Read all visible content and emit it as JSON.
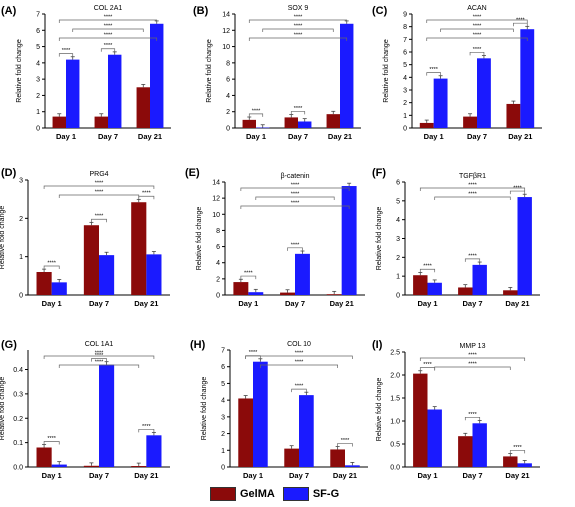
{
  "colors": {
    "GelMA": "#8b0a0a",
    "SF-G": "#1a1aff",
    "bracket": "#666666"
  },
  "legend": [
    {
      "name": "GelMA",
      "color": "#8b0a0a"
    },
    {
      "name": "SF-G",
      "color": "#1a1aff"
    }
  ],
  "ylabel_common": "Relative fold change",
  "chart_data": [
    {
      "type": "bar",
      "letter": "(A)",
      "title": "COL 2A1",
      "categories": [
        "Day 1",
        "Day 7",
        "Day 21"
      ],
      "ylim": [
        0,
        7
      ],
      "yticks": [
        0,
        1,
        2,
        3,
        4,
        5,
        6,
        7
      ],
      "series": [
        {
          "name": "GelMA",
          "values": [
            0.7,
            0.7,
            2.5
          ]
        },
        {
          "name": "SF-G",
          "values": [
            4.2,
            4.5,
            6.4
          ]
        }
      ],
      "significance": [
        "****",
        "****",
        "****",
        "****",
        "****"
      ]
    },
    {
      "type": "bar",
      "letter": "(B)",
      "title": "SOX 9",
      "categories": [
        "Day 1",
        "Day 7",
        "Day 21"
      ],
      "ylim": [
        0,
        14
      ],
      "yticks": [
        0,
        2,
        4,
        6,
        8,
        10,
        12,
        14
      ],
      "series": [
        {
          "name": "GelMA",
          "values": [
            1.0,
            1.3,
            1.7
          ]
        },
        {
          "name": "SF-G",
          "values": [
            0.05,
            0.8,
            12.8
          ]
        }
      ],
      "significance": [
        "****",
        "****",
        "****",
        "****",
        "****",
        "****"
      ]
    },
    {
      "type": "bar",
      "letter": "(C)",
      "title": "ACAN",
      "categories": [
        "Day 1",
        "Day 7",
        "Day 21"
      ],
      "ylim": [
        0,
        9
      ],
      "yticks": [
        0,
        1,
        2,
        3,
        4,
        5,
        6,
        7,
        8,
        9
      ],
      "series": [
        {
          "name": "GelMA",
          "values": [
            0.4,
            0.9,
            1.9
          ]
        },
        {
          "name": "SF-G",
          "values": [
            3.9,
            5.5,
            7.8
          ]
        }
      ],
      "significance": [
        "****",
        "****",
        "****",
        "****",
        "****",
        "****",
        "****"
      ]
    },
    {
      "type": "bar",
      "letter": "(D)",
      "title": "PRG4",
      "categories": [
        "Day 1",
        "Day 7",
        "Day 21"
      ],
      "ylim": [
        0,
        3
      ],
      "yticks": [
        0,
        1,
        2,
        3
      ],
      "series": [
        {
          "name": "GelMA",
          "values": [
            0.6,
            1.82,
            2.42
          ]
        },
        {
          "name": "SF-G",
          "values": [
            0.33,
            1.04,
            1.06
          ]
        }
      ],
      "significance": [
        "****",
        "****",
        "****",
        "****",
        "****"
      ]
    },
    {
      "type": "bar",
      "letter": "(E)",
      "title": "β-catenin",
      "categories": [
        "Day 1",
        "Day 7",
        "Day 21"
      ],
      "ylim": [
        0,
        14
      ],
      "yticks": [
        0,
        2,
        4,
        6,
        8,
        10,
        12,
        14
      ],
      "series": [
        {
          "name": "GelMA",
          "values": [
            1.6,
            0.3,
            0.1
          ]
        },
        {
          "name": "SF-G",
          "values": [
            0.35,
            5.1,
            13.5
          ]
        }
      ],
      "significance": [
        "****",
        "****",
        "****",
        "****",
        "****"
      ]
    },
    {
      "type": "bar",
      "letter": "(F)",
      "title": "TGFβR1",
      "categories": [
        "Day 1",
        "Day 7",
        "Day 21"
      ],
      "ylim": [
        0,
        6
      ],
      "yticks": [
        0,
        1,
        2,
        3,
        4,
        5,
        6
      ],
      "series": [
        {
          "name": "GelMA",
          "values": [
            1.05,
            0.4,
            0.25
          ]
        },
        {
          "name": "SF-G",
          "values": [
            0.65,
            1.6,
            5.2
          ]
        }
      ],
      "significance": [
        "****",
        "****",
        "****",
        "****",
        "****"
      ]
    },
    {
      "type": "bar",
      "letter": "(G)",
      "title": "COL 1A1",
      "categories": [
        "Day 1",
        "Day 7",
        "Day 21"
      ],
      "ylim": [
        0,
        0.48
      ],
      "yticks": [
        0.0,
        0.1,
        0.2,
        0.3,
        0.4
      ],
      "series": [
        {
          "name": "GelMA",
          "values": [
            0.08,
            0.005,
            0.004
          ]
        },
        {
          "name": "SF-G",
          "values": [
            0.01,
            0.42,
            0.13
          ]
        }
      ],
      "significance": [
        "****",
        "****",
        "****",
        "****",
        "****"
      ]
    },
    {
      "type": "bar",
      "letter": "(H)",
      "title": "COL 10",
      "categories": [
        "Day 1",
        "Day 7",
        "Day 21"
      ],
      "ylim": [
        0,
        7
      ],
      "yticks": [
        0,
        1,
        2,
        3,
        4,
        5,
        6,
        7
      ],
      "series": [
        {
          "name": "GelMA",
          "values": [
            4.1,
            1.1,
            1.05
          ]
        },
        {
          "name": "SF-G",
          "values": [
            6.3,
            4.3,
            0.1
          ]
        }
      ],
      "significance": [
        "****",
        "****",
        "****",
        "****",
        "****"
      ]
    },
    {
      "type": "bar",
      "letter": "(I)",
      "title": "MMP 13",
      "categories": [
        "Day 1",
        "Day 7",
        "Day 21"
      ],
      "ylim": [
        0,
        2.5
      ],
      "yticks": [
        0.0,
        0.5,
        1.0,
        1.5,
        2.0,
        2.5
      ],
      "series": [
        {
          "name": "GelMA",
          "values": [
            2.03,
            0.67,
            0.23
          ]
        },
        {
          "name": "SF-G",
          "values": [
            1.25,
            0.95,
            0.08
          ]
        }
      ],
      "significance": [
        "****",
        "****",
        "****",
        "****",
        "****"
      ]
    }
  ]
}
